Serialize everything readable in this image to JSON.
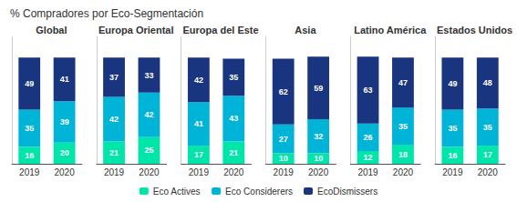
{
  "title": "% Compradores por Eco-Segmentación",
  "chart_data": [
    {
      "type": "bar",
      "title": "Global",
      "categories": [
        "2019",
        "2020"
      ],
      "series": [
        {
          "name": "Eco Actives",
          "color": "#00e5aa",
          "values": [
            16,
            20
          ]
        },
        {
          "name": "Eco Considerers",
          "color": "#00b4d8",
          "values": [
            35,
            39
          ]
        },
        {
          "name": "EcoDismissers",
          "color": "#1a3580",
          "values": [
            49,
            41
          ]
        }
      ],
      "ylim": [
        0,
        120
      ],
      "yticks": [],
      "stacked": true,
      "data_labels": true,
      "grid": false,
      "tick_labels": "x",
      "legend": "bottom"
    },
    {
      "type": "bar",
      "title": "Europa Oriental",
      "categories": [
        "2019",
        "2020"
      ],
      "series": [
        {
          "name": "Eco Actives",
          "color": "#00e5aa",
          "values": [
            21,
            25
          ]
        },
        {
          "name": "Eco Considerers",
          "color": "#00b4d8",
          "values": [
            42,
            42
          ]
        },
        {
          "name": "EcoDismissers",
          "color": "#1a3580",
          "values": [
            37,
            33
          ]
        }
      ],
      "ylim": [
        0,
        120
      ],
      "yticks": [],
      "stacked": true,
      "data_labels": true,
      "grid": false,
      "tick_labels": "x",
      "legend": "bottom"
    },
    {
      "type": "bar",
      "title": "Europa del Este",
      "categories": [
        "2019",
        "2020"
      ],
      "series": [
        {
          "name": "Eco Actives",
          "color": "#00e5aa",
          "values": [
            17,
            21
          ]
        },
        {
          "name": "Eco Considerers",
          "color": "#00b4d8",
          "values": [
            41,
            43
          ]
        },
        {
          "name": "EcoDismissers",
          "color": "#1a3580",
          "values": [
            42,
            35
          ]
        }
      ],
      "ylim": [
        0,
        120
      ],
      "yticks": [],
      "stacked": true,
      "data_labels": true,
      "grid": false,
      "tick_labels": "x",
      "legend": "bottom"
    },
    {
      "type": "bar",
      "title": "Asia",
      "categories": [
        "2019",
        "2020"
      ],
      "series": [
        {
          "name": "Eco Actives",
          "color": "#00e5aa",
          "values": [
            10,
            10
          ]
        },
        {
          "name": "Eco Considerers",
          "color": "#00b4d8",
          "values": [
            27,
            32
          ]
        },
        {
          "name": "EcoDismissers",
          "color": "#1a3580",
          "values": [
            62,
            59
          ]
        }
      ],
      "ylim": [
        0,
        120
      ],
      "yticks": [],
      "stacked": true,
      "data_labels": true,
      "grid": false,
      "tick_labels": "x",
      "legend": "bottom"
    },
    {
      "type": "bar",
      "title": "Latino América",
      "categories": [
        "2019",
        "2020"
      ],
      "series": [
        {
          "name": "Eco Actives",
          "color": "#00e5aa",
          "values": [
            12,
            18
          ]
        },
        {
          "name": "Eco Considerers",
          "color": "#00b4d8",
          "values": [
            26,
            35
          ]
        },
        {
          "name": "EcoDismissers",
          "color": "#1a3580",
          "values": [
            63,
            47
          ]
        }
      ],
      "ylim": [
        0,
        120
      ],
      "yticks": [],
      "stacked": true,
      "data_labels": true,
      "grid": false,
      "tick_labels": "x",
      "legend": "bottom"
    },
    {
      "type": "bar",
      "title": "Estados Unidos",
      "categories": [
        "2019",
        "2020"
      ],
      "series": [
        {
          "name": "Eco Actives",
          "color": "#00e5aa",
          "values": [
            16,
            17
          ]
        },
        {
          "name": "Eco Considerers",
          "color": "#00b4d8",
          "values": [
            35,
            35
          ]
        },
        {
          "name": "EcoDismissers",
          "color": "#1a3580",
          "values": [
            49,
            48
          ]
        }
      ],
      "ylim": [
        0,
        120
      ],
      "yticks": [],
      "stacked": true,
      "data_labels": true,
      "grid": false,
      "tick_labels": "x",
      "legend": "bottom"
    }
  ]
}
